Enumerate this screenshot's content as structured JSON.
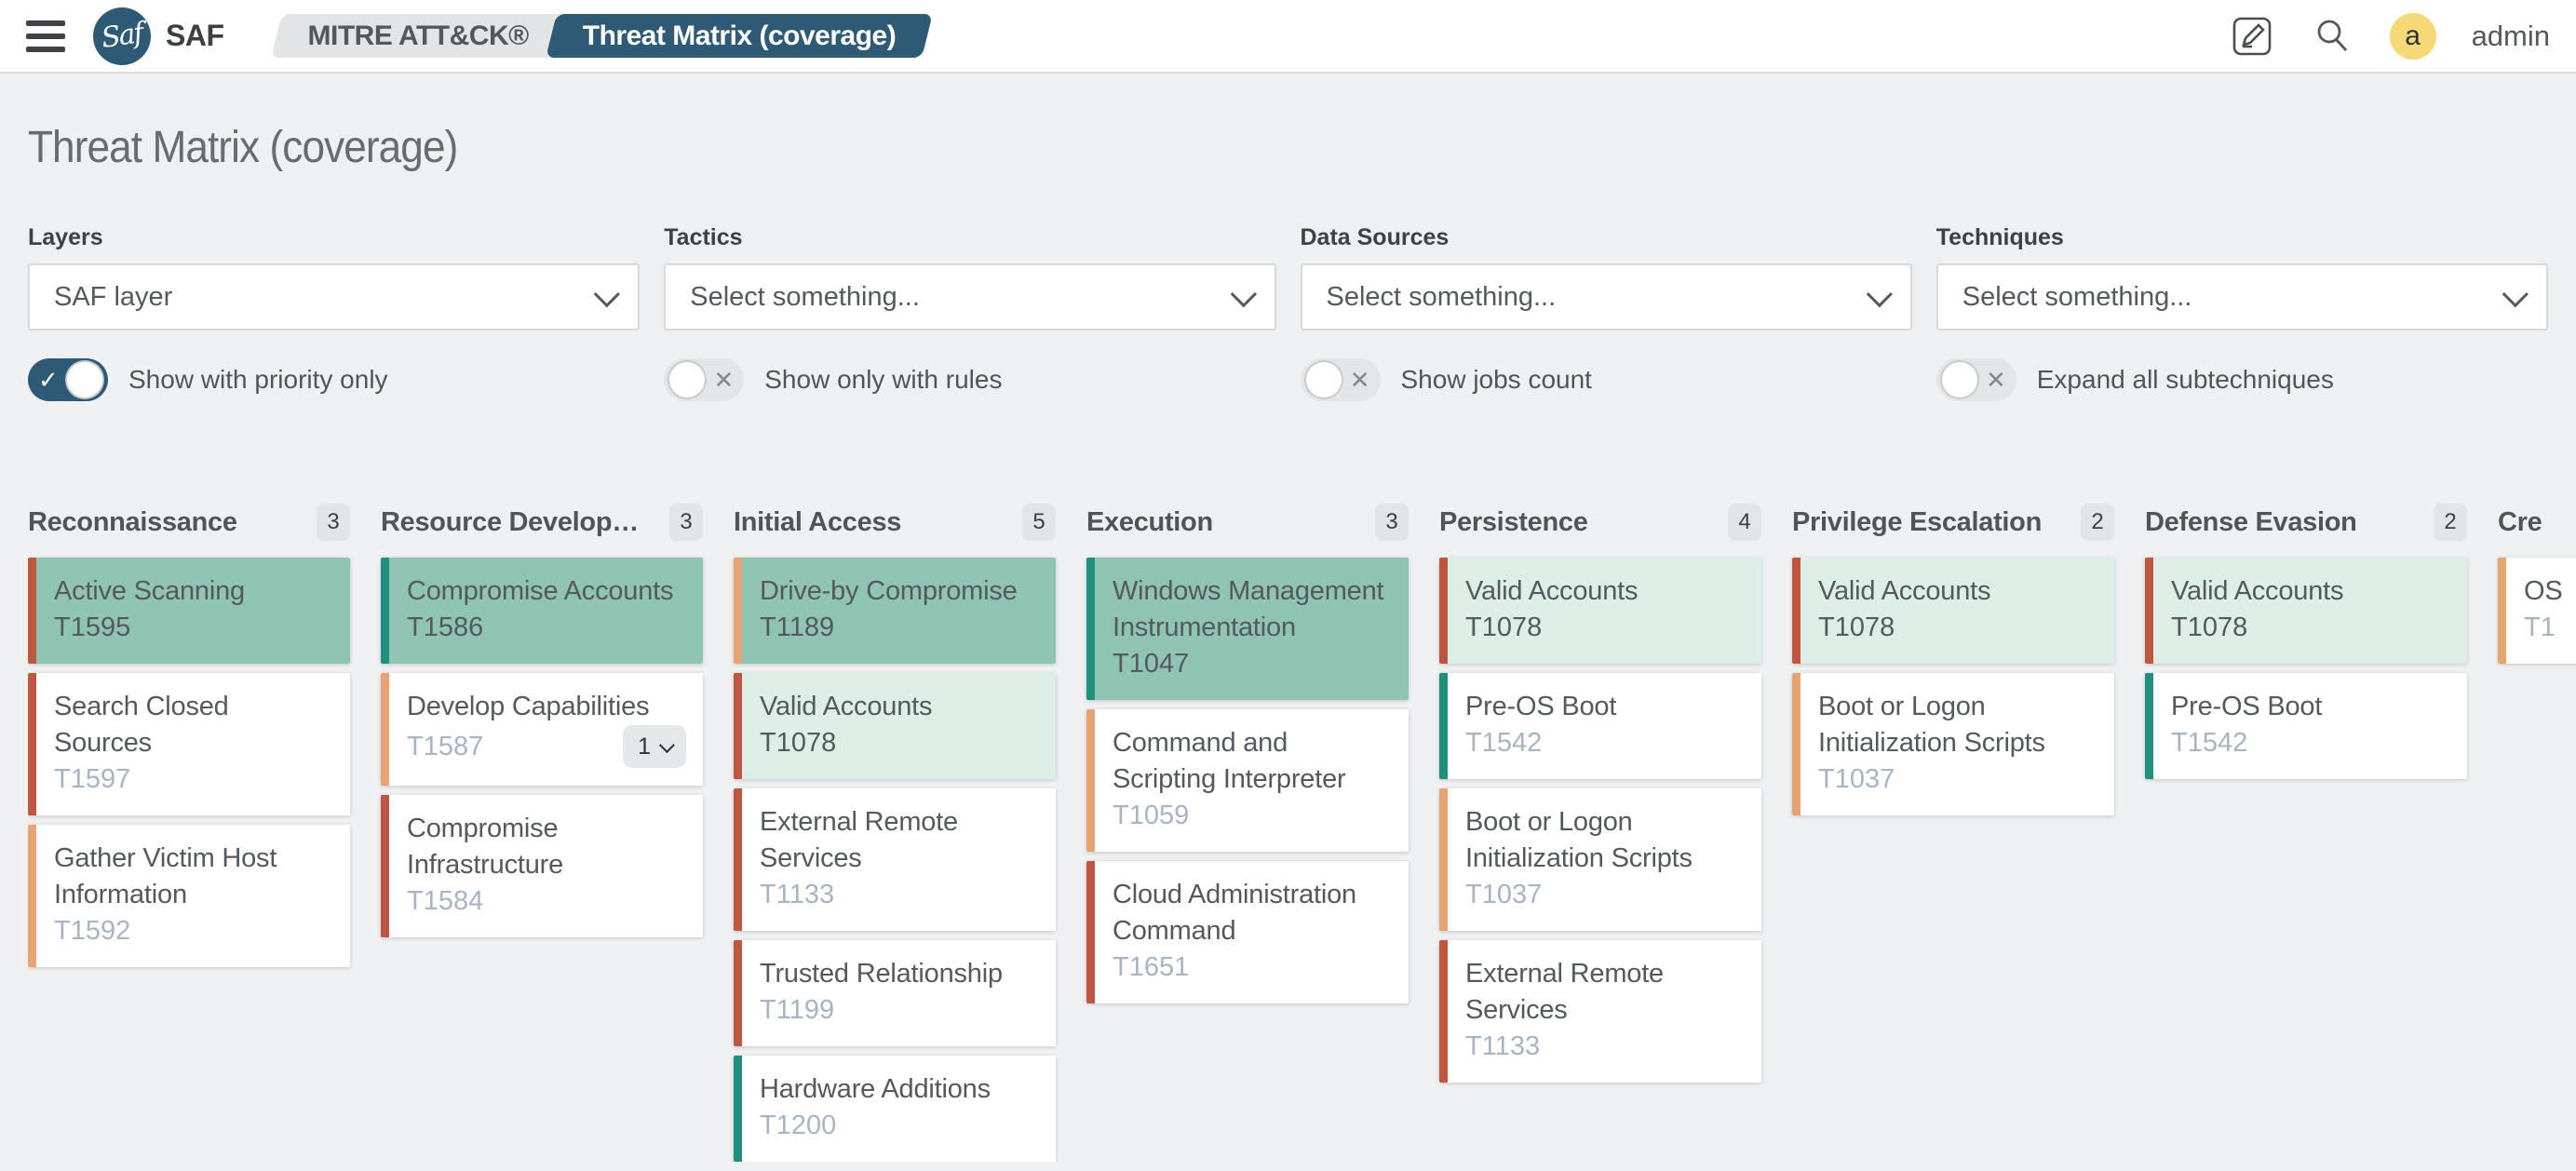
{
  "header": {
    "brand": "SAF",
    "breadcrumbs": [
      {
        "label": "MITRE ATT&CK®",
        "active": false
      },
      {
        "label": "Threat Matrix (coverage)",
        "active": true
      }
    ],
    "user": {
      "avatar_letter": "a",
      "name": "admin"
    }
  },
  "page": {
    "title": "Threat Matrix (coverage)"
  },
  "filters": [
    {
      "label": "Layers",
      "value": "SAF layer",
      "toggle": {
        "label": "Show with priority only",
        "on": true
      }
    },
    {
      "label": "Tactics",
      "value": "Select something...",
      "toggle": {
        "label": "Show only with rules",
        "on": false
      }
    },
    {
      "label": "Data Sources",
      "value": "Select something...",
      "toggle": {
        "label": "Show jobs count",
        "on": false
      }
    },
    {
      "label": "Techniques",
      "value": "Select something...",
      "toggle": {
        "label": "Expand all subtechniques",
        "on": false
      }
    }
  ],
  "colors": {
    "brand_blue": "#2e5a76",
    "border_red": "#c05540",
    "border_orange": "#e7a371",
    "border_teal": "#20907e",
    "card_green": "#8fc3b2",
    "card_pale_green": "#dceee6",
    "avatar_yellow": "#f5d977"
  },
  "matrix": {
    "columns": [
      {
        "name": "Reconnaissance",
        "count": "3",
        "cards": [
          {
            "title": "Active Scanning",
            "id": "T1595",
            "bg": "green",
            "border": "red"
          },
          {
            "title": "Search Closed Sources",
            "id": "T1597",
            "bg": "white",
            "border": "red"
          },
          {
            "title": "Gather Victim Host Information",
            "id": "T1592",
            "bg": "white",
            "border": "orange"
          }
        ]
      },
      {
        "name": "Resource Development",
        "count": "3",
        "cards": [
          {
            "title": "Compromise Accounts",
            "id": "T1586",
            "bg": "green",
            "border": "teal"
          },
          {
            "title": "Develop Capabilities",
            "id": "T1587",
            "bg": "white",
            "border": "orange",
            "sub_count": "1"
          },
          {
            "title": "Compromise Infrastructure",
            "id": "T1584",
            "bg": "white",
            "border": "red"
          }
        ]
      },
      {
        "name": "Initial Access",
        "count": "5",
        "cards": [
          {
            "title": "Drive-by Compromise",
            "id": "T1189",
            "bg": "green",
            "border": "orange"
          },
          {
            "title": "Valid Accounts",
            "id": "T1078",
            "bg": "pale",
            "border": "red"
          },
          {
            "title": "External Remote Services",
            "id": "T1133",
            "bg": "white",
            "border": "red"
          },
          {
            "title": "Trusted Relationship",
            "id": "T1199",
            "bg": "white",
            "border": "red"
          },
          {
            "title": "Hardware Additions",
            "id": "T1200",
            "bg": "white",
            "border": "teal"
          }
        ]
      },
      {
        "name": "Execution",
        "count": "3",
        "cards": [
          {
            "title": "Windows Management Instrumentation",
            "id": "T1047",
            "bg": "green",
            "border": "teal"
          },
          {
            "title": "Command and Scripting Interpreter",
            "id": "T1059",
            "bg": "white",
            "border": "orange"
          },
          {
            "title": "Cloud Administration Command",
            "id": "T1651",
            "bg": "white",
            "border": "red"
          }
        ]
      },
      {
        "name": "Persistence",
        "count": "4",
        "cards": [
          {
            "title": "Valid Accounts",
            "id": "T1078",
            "bg": "pale",
            "border": "red"
          },
          {
            "title": "Pre-OS Boot",
            "id": "T1542",
            "bg": "white",
            "border": "teal"
          },
          {
            "title": "Boot or Logon Initialization Scripts",
            "id": "T1037",
            "bg": "white",
            "border": "orange"
          },
          {
            "title": "External Remote Services",
            "id": "T1133",
            "bg": "white",
            "border": "red"
          }
        ]
      },
      {
        "name": "Privilege Escalation",
        "count": "2",
        "cards": [
          {
            "title": "Valid Accounts",
            "id": "T1078",
            "bg": "pale",
            "border": "red"
          },
          {
            "title": "Boot or Logon Initialization Scripts",
            "id": "T1037",
            "bg": "white",
            "border": "orange"
          }
        ]
      },
      {
        "name": "Defense Evasion",
        "count": "2",
        "cards": [
          {
            "title": "Valid Accounts",
            "id": "T1078",
            "bg": "pale",
            "border": "red"
          },
          {
            "title": "Pre-OS Boot",
            "id": "T1542",
            "bg": "white",
            "border": "teal"
          }
        ]
      },
      {
        "name": "Cre",
        "count": "",
        "cards": [
          {
            "title": "OS",
            "id": "T1",
            "bg": "white",
            "border": "orange"
          }
        ]
      }
    ]
  }
}
